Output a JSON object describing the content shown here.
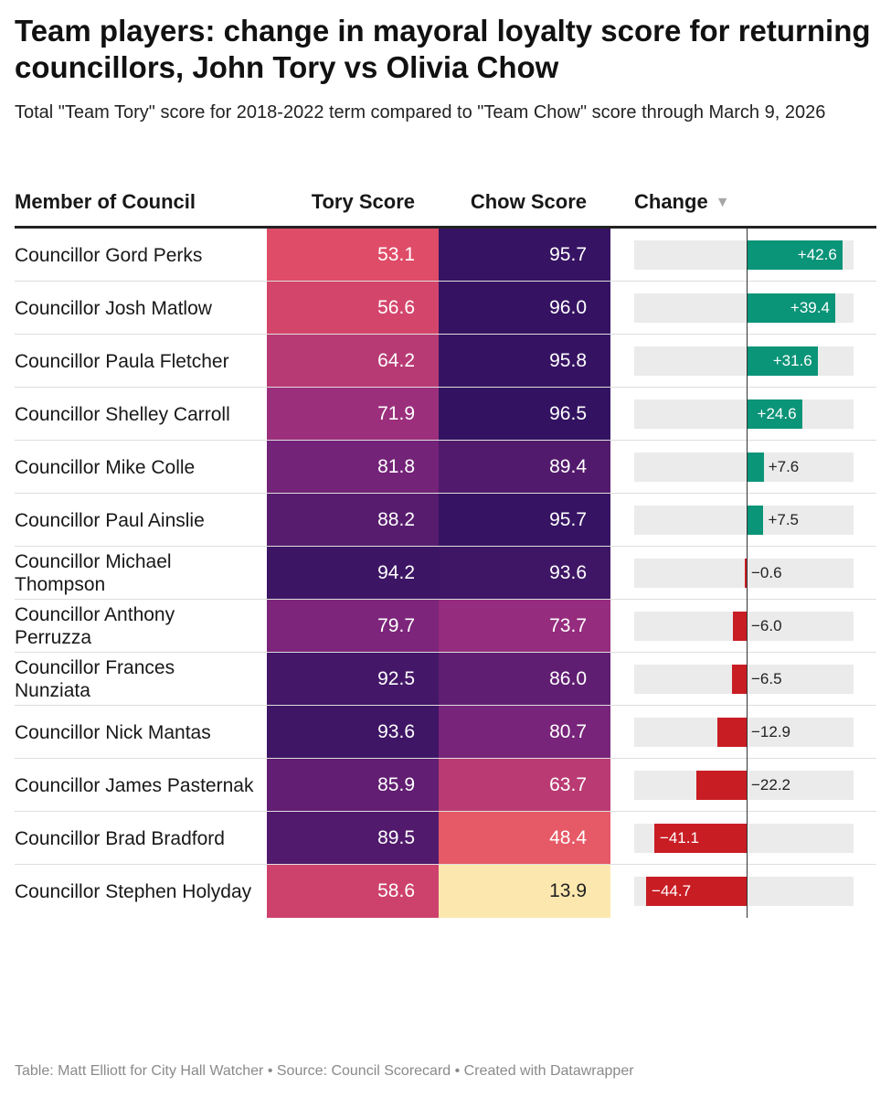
{
  "title": "Team players: change in mayoral loyalty score for returning councillors, John Tory vs Olivia Chow",
  "subtitle": "Total \"Team Tory\" score for 2018-2022 term compared to \"Team Chow\" score through March 9, 2026",
  "headers": {
    "member": "Member of Council",
    "tory": "Tory Score",
    "chow": "Chow Score",
    "change": "Change",
    "sort_icon": "▼"
  },
  "footer": "Table: Matt Elliott for City Hall Watcher • Source: Council Scorecard • Created with Datawrapper",
  "colors": {
    "positive": "#0a9478",
    "negative": "#c91d24",
    "track": "#ebebeb"
  },
  "chart_data": {
    "type": "table",
    "title": "Team players: change in mayoral loyalty score for returning councillors, John Tory vs Olivia Chow",
    "columns": [
      "Member of Council",
      "Tory Score",
      "Chow Score",
      "Change"
    ],
    "sort": {
      "column": "Change",
      "order": "descending"
    },
    "change_range": [
      -50,
      50
    ],
    "rows": [
      {
        "name": "Councillor Gord Perks",
        "tory": 53.1,
        "chow": 95.7,
        "change": 42.6,
        "change_label": "+42.6"
      },
      {
        "name": "Councillor Josh Matlow",
        "tory": 56.6,
        "chow": 96.0,
        "change": 39.4,
        "change_label": "+39.4"
      },
      {
        "name": "Councillor Paula Fletcher",
        "tory": 64.2,
        "chow": 95.8,
        "change": 31.6,
        "change_label": "+31.6"
      },
      {
        "name": "Councillor Shelley Carroll",
        "tory": 71.9,
        "chow": 96.5,
        "change": 24.6,
        "change_label": "+24.6"
      },
      {
        "name": "Councillor Mike Colle",
        "tory": 81.8,
        "chow": 89.4,
        "change": 7.6,
        "change_label": "+7.6"
      },
      {
        "name": "Councillor Paul Ainslie",
        "tory": 88.2,
        "chow": 95.7,
        "change": 7.5,
        "change_label": "+7.5"
      },
      {
        "name": "Councillor Michael Thompson",
        "tory": 94.2,
        "chow": 93.6,
        "change": -0.6,
        "change_label": "−0.6"
      },
      {
        "name": "Councillor Anthony Perruzza",
        "tory": 79.7,
        "chow": 73.7,
        "change": -6.0,
        "change_label": "−6.0"
      },
      {
        "name": "Councillor Frances Nunziata",
        "tory": 92.5,
        "chow": 86.0,
        "change": -6.5,
        "change_label": "−6.5"
      },
      {
        "name": "Councillor Nick Mantas",
        "tory": 93.6,
        "chow": 80.7,
        "change": -12.9,
        "change_label": "−12.9"
      },
      {
        "name": "Councillor James Pasternak",
        "tory": 85.9,
        "chow": 63.7,
        "change": -22.2,
        "change_label": "−22.2"
      },
      {
        "name": "Councillor Brad Bradford",
        "tory": 89.5,
        "chow": 48.4,
        "change": -41.1,
        "change_label": "−41.1"
      },
      {
        "name": "Councillor Stephen Holyday",
        "tory": 58.6,
        "chow": 13.9,
        "change": -44.7,
        "change_label": "−44.7"
      }
    ]
  }
}
